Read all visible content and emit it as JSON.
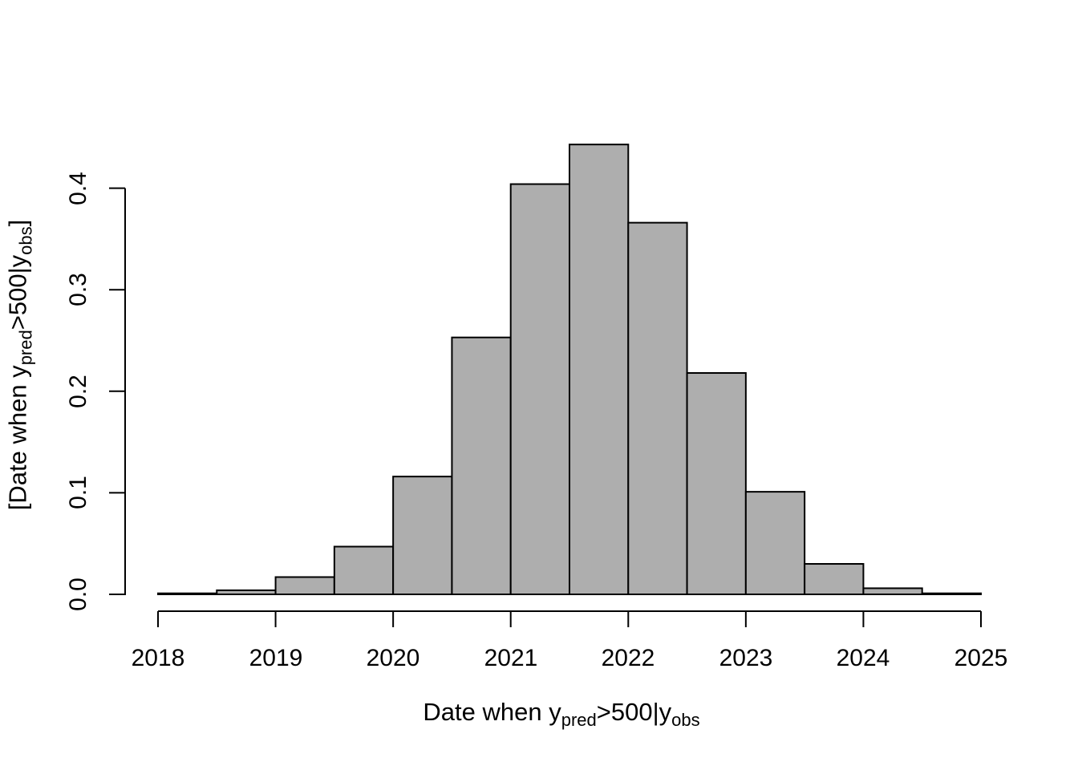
{
  "figure": {
    "background": "#ffffff",
    "bar_fill": "#aeaeae",
    "bar_stroke": "#000000",
    "axis_color": "#000000"
  },
  "chart_data": {
    "type": "bar",
    "subtype": "histogram-density",
    "title": "",
    "xlabel_parts": {
      "text1": "Date when y",
      "sub1": "pred",
      "text2": ">500|y",
      "sub2": "obs"
    },
    "ylabel_parts": {
      "text1": "[Date when y",
      "sub1": "pred",
      "text2": ">500|y",
      "sub2": "obs",
      "text3": "]"
    },
    "xlim": [
      2018,
      2025
    ],
    "ylim": [
      0,
      0.45
    ],
    "grid": false,
    "legend": false,
    "x_ticks": [
      2018,
      2019,
      2020,
      2021,
      2022,
      2023,
      2024,
      2025
    ],
    "y_ticks": [
      0.0,
      0.1,
      0.2,
      0.3,
      0.4
    ],
    "y_tick_labels": [
      "0.0",
      "0.1",
      "0.2",
      "0.3",
      "0.4"
    ],
    "bin_width_years": 0.5,
    "bins": [
      {
        "start": 2018.0,
        "end": 2018.5,
        "density": 0.001
      },
      {
        "start": 2018.5,
        "end": 2019.0,
        "density": 0.004
      },
      {
        "start": 2019.0,
        "end": 2019.5,
        "density": 0.017
      },
      {
        "start": 2019.5,
        "end": 2020.0,
        "density": 0.047
      },
      {
        "start": 2020.0,
        "end": 2020.5,
        "density": 0.116
      },
      {
        "start": 2020.5,
        "end": 2021.0,
        "density": 0.253
      },
      {
        "start": 2021.0,
        "end": 2021.5,
        "density": 0.404
      },
      {
        "start": 2021.5,
        "end": 2022.0,
        "density": 0.443
      },
      {
        "start": 2022.0,
        "end": 2022.5,
        "density": 0.366
      },
      {
        "start": 2022.5,
        "end": 2023.0,
        "density": 0.218
      },
      {
        "start": 2023.0,
        "end": 2023.5,
        "density": 0.101
      },
      {
        "start": 2023.5,
        "end": 2024.0,
        "density": 0.03
      },
      {
        "start": 2024.0,
        "end": 2024.5,
        "density": 0.006
      },
      {
        "start": 2024.5,
        "end": 2025.0,
        "density": 0.001
      }
    ]
  }
}
